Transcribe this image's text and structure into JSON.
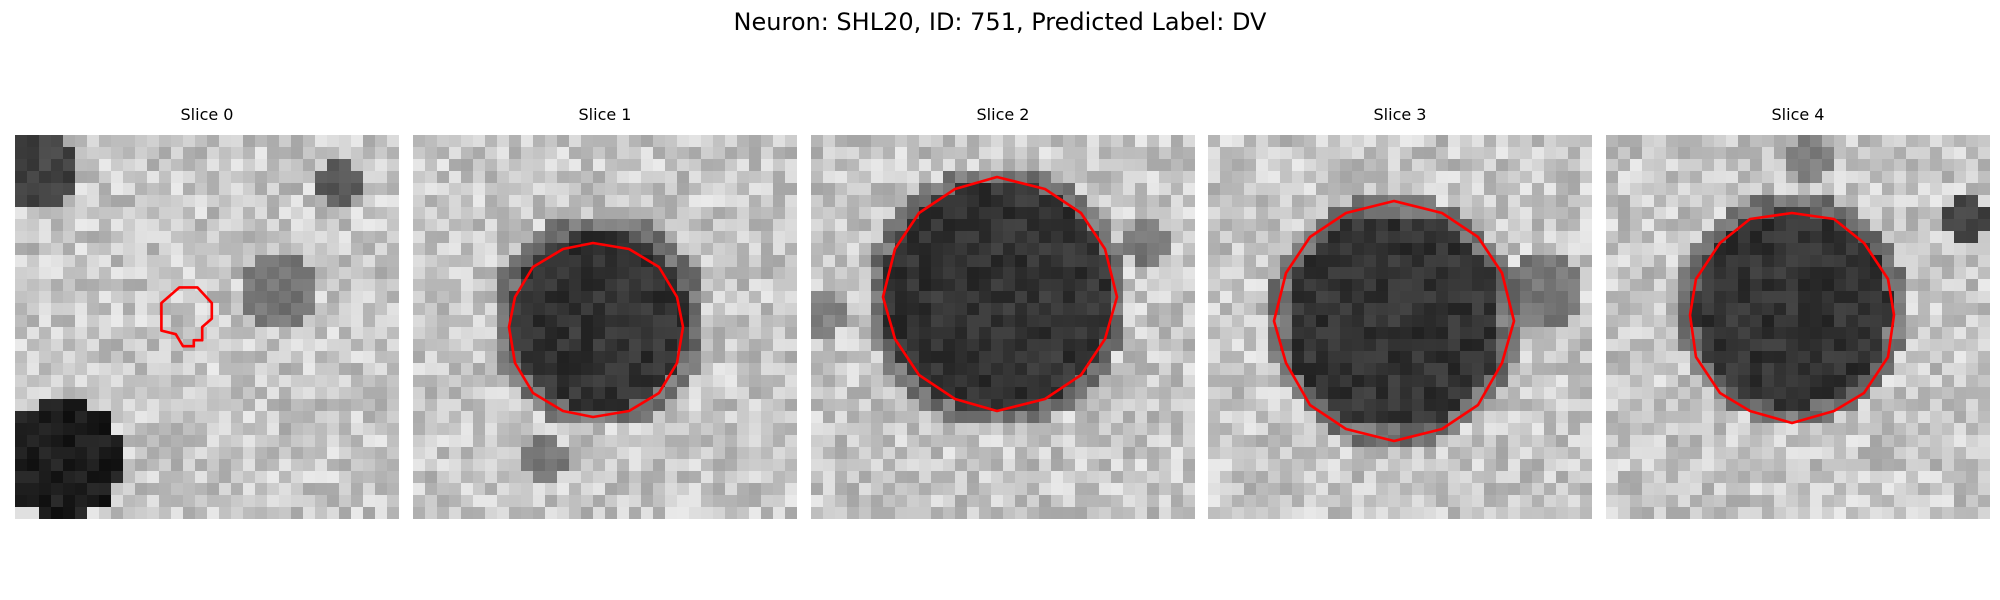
{
  "figure": {
    "title": "Neuron: SHL20, ID: 751, Predicted Label: DV",
    "contour_color": "#ff0000",
    "panels": [
      {
        "title": "Slice 0"
      },
      {
        "title": "Slice 1"
      },
      {
        "title": "Slice 2"
      },
      {
        "title": "Slice 3"
      },
      {
        "title": "Slice 4"
      }
    ]
  }
}
